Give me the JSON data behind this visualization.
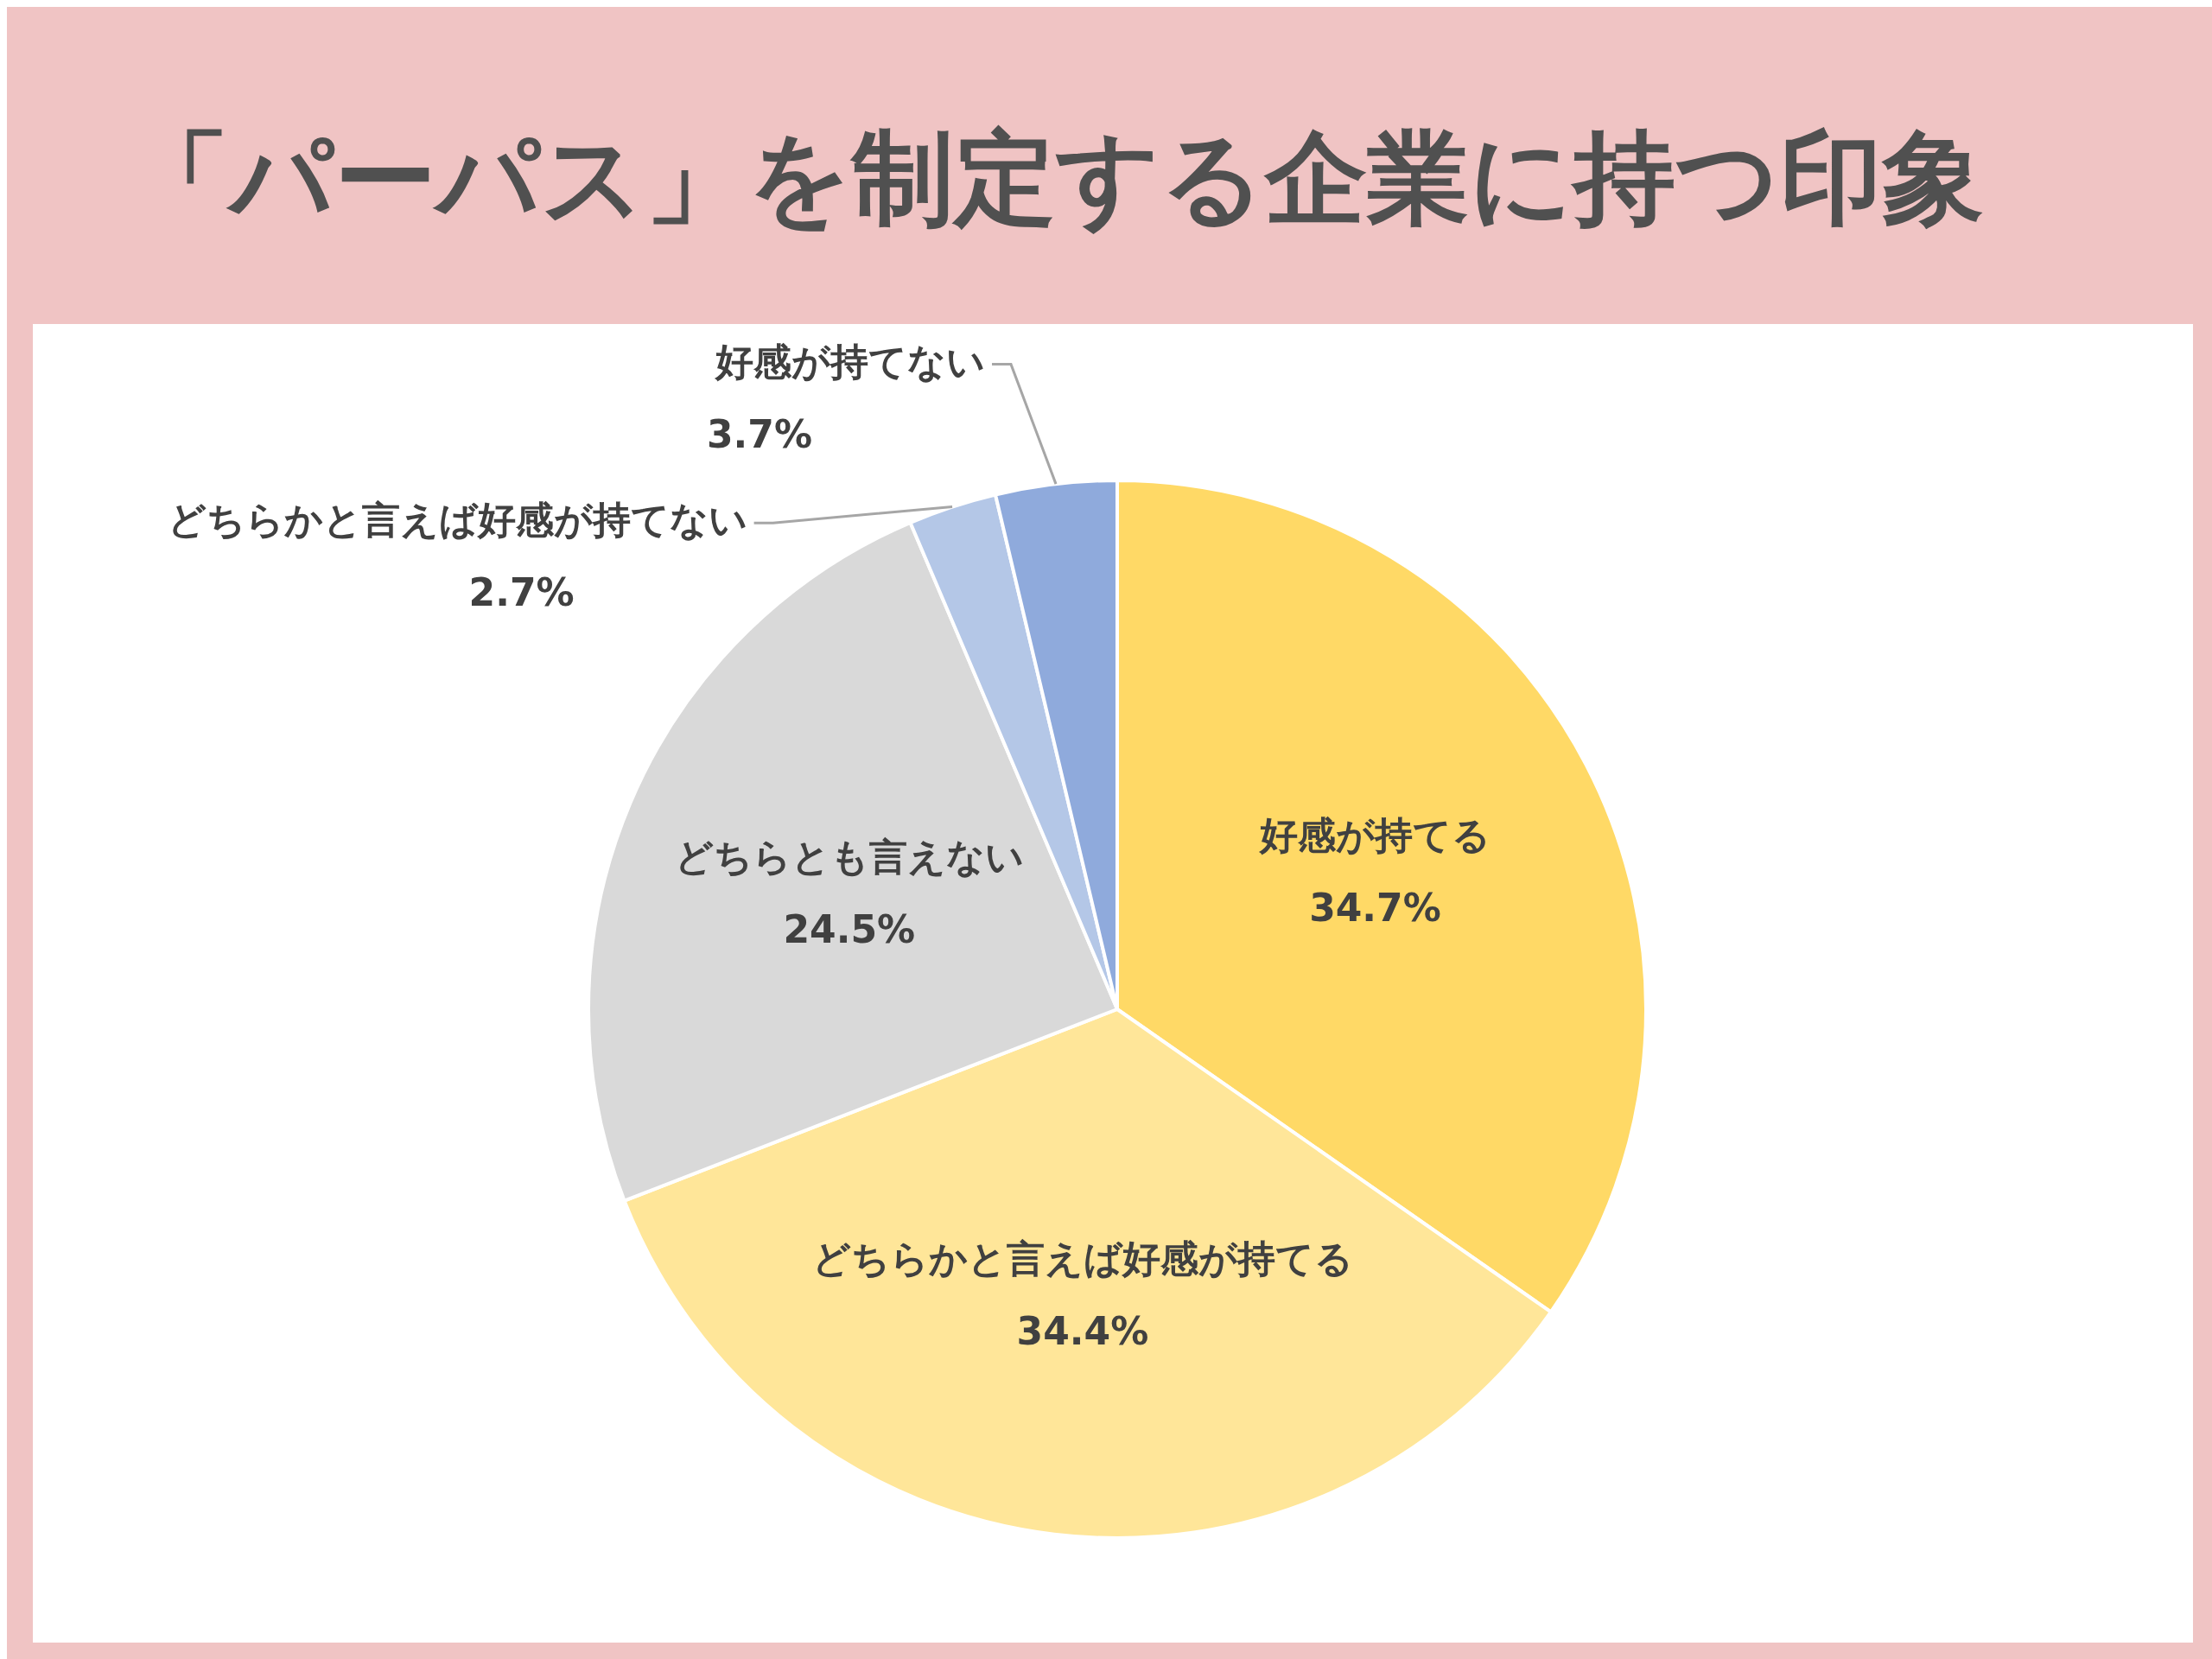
{
  "chart_data": {
    "type": "pie",
    "title": "「パーパス」を制定する企業に持つ印象",
    "categories": [
      "好感が持てる",
      "どちらかと言えば好感が持てる",
      "どちらとも言えない",
      "どちらかと言えば好感が持てない",
      "好感が持てない"
    ],
    "values": [
      34.7,
      34.4,
      24.5,
      2.7,
      3.7
    ],
    "value_labels": [
      "34.7%",
      "34.4%",
      "24.5%",
      "2.7%",
      "3.7%"
    ],
    "colors": [
      "#ffd966",
      "#ffe699",
      "#d9d9d9",
      "#b4c7e7",
      "#8faadc"
    ],
    "legend": false
  }
}
